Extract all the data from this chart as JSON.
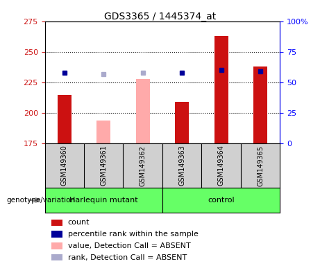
{
  "title": "GDS3365 / 1445374_at",
  "samples": [
    "GSM149360",
    "GSM149361",
    "GSM149362",
    "GSM149363",
    "GSM149364",
    "GSM149365"
  ],
  "bar_values": [
    215,
    null,
    null,
    209,
    263,
    238
  ],
  "bar_color": "#cc1111",
  "absent_bar_values": [
    null,
    194,
    228,
    null,
    null,
    null
  ],
  "absent_bar_color": "#ffaaaa",
  "dot_values": [
    233,
    null,
    null,
    233,
    235,
    234
  ],
  "dot_color": "#000099",
  "absent_dot_values": [
    null,
    232,
    233,
    null,
    null,
    null
  ],
  "absent_dot_color": "#aaaacc",
  "ylim": [
    175,
    275
  ],
  "yticks_left": [
    175,
    200,
    225,
    250,
    275
  ],
  "y2lim": [
    0,
    100
  ],
  "y2ticks": [
    0,
    25,
    50,
    75,
    100
  ],
  "y2tick_labels": [
    "0",
    "25",
    "50",
    "75",
    "100%"
  ],
  "bar_width": 0.35,
  "harlequin_group": [
    0,
    1,
    2
  ],
  "control_group": [
    3,
    4,
    5
  ],
  "group_label_harlequin": "Harlequin mutant",
  "group_label_control": "control",
  "genotype_label": "genotype/variation",
  "legend_items": [
    {
      "label": "count",
      "color": "#cc1111"
    },
    {
      "label": "percentile rank within the sample",
      "color": "#000099"
    },
    {
      "label": "value, Detection Call = ABSENT",
      "color": "#ffaaaa"
    },
    {
      "label": "rank, Detection Call = ABSENT",
      "color": "#aaaacc"
    }
  ],
  "sample_box_color": "#d0d0d0",
  "green_color": "#66ff66",
  "title_fontsize": 10,
  "tick_fontsize": 8,
  "label_fontsize": 8,
  "legend_fontsize": 8
}
